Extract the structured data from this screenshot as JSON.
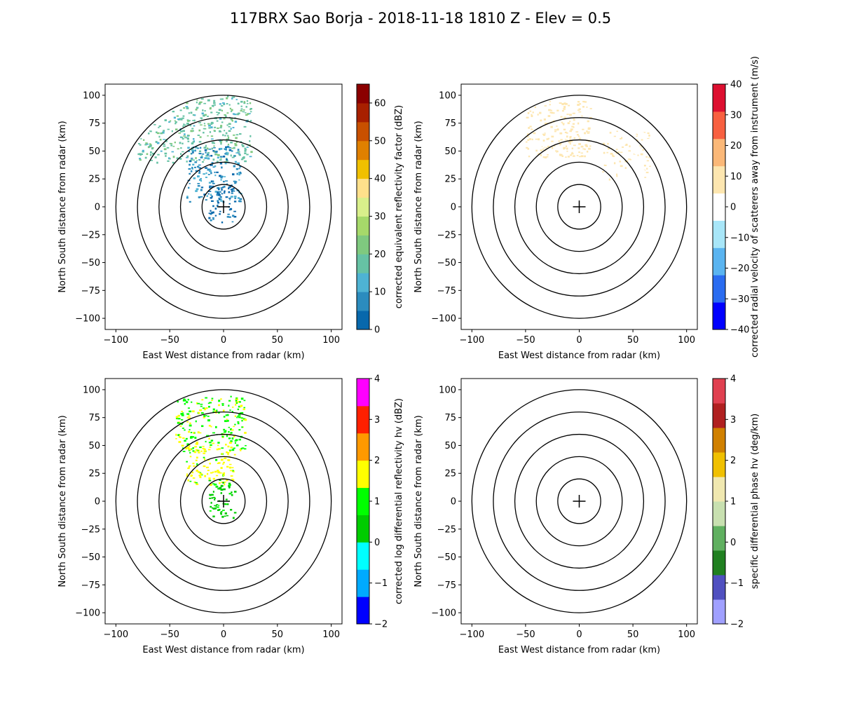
{
  "title": "117BRX Sao Borja - 2018-11-18 1810 Z -  Elev = 0.5",
  "chart_data": [
    {
      "type": "heatmap",
      "xlabel": "East West distance from radar (km)",
      "ylabel": "North South distance from radar (km)",
      "xlim": [
        -110,
        110
      ],
      "ylim": [
        -110,
        110
      ],
      "xticks": [
        -100,
        -50,
        0,
        50,
        100
      ],
      "yticks": [
        -100,
        -75,
        -50,
        -25,
        0,
        25,
        50,
        75,
        100
      ],
      "range_rings_km": [
        20,
        40,
        60,
        80,
        100
      ],
      "colorbar": {
        "label": "corrected equivalent reflectivity factor (dBZ)",
        "min": 0,
        "max": 65,
        "ticks": [
          0,
          10,
          20,
          30,
          40,
          50,
          60
        ],
        "colors": [
          "#0868ac",
          "#2b8cbe",
          "#4eb3d3",
          "#66c2a4",
          "#7fc97f",
          "#a6d96a",
          "#d9ef8b",
          "#fee08b",
          "#f0c000",
          "#e08000",
          "#c85000",
          "#a82000",
          "#8b0000"
        ]
      },
      "echo_regions": [
        {
          "name": "northwest-arc",
          "x_range": [
            -80,
            25
          ],
          "y_range": [
            40,
            100
          ],
          "value": 18
        },
        {
          "name": "central-core",
          "x_range": [
            -35,
            15
          ],
          "y_range": [
            5,
            55
          ],
          "value": 8
        },
        {
          "name": "near-radar",
          "x_range": [
            -15,
            10
          ],
          "y_range": [
            -15,
            20
          ],
          "value": 4
        }
      ]
    },
    {
      "type": "heatmap",
      "xlabel": "East West distance from radar (km)",
      "ylabel": "North South distance from radar (km)",
      "xlim": [
        -110,
        110
      ],
      "ylim": [
        -110,
        110
      ],
      "xticks": [
        -100,
        -50,
        0,
        50,
        100
      ],
      "yticks": [
        -100,
        -75,
        -50,
        -25,
        0,
        25,
        50,
        75,
        100
      ],
      "range_rings_km": [
        20,
        40,
        60,
        80,
        100
      ],
      "colorbar": {
        "label": "corrected radial velocity of scatterers away from instrument (m/s)",
        "min": -40,
        "max": 40,
        "ticks": [
          -40,
          -30,
          -20,
          -10,
          0,
          10,
          20,
          30,
          40
        ],
        "colors": [
          "#0000ff",
          "#2a6cf0",
          "#5ab4f0",
          "#a8e6f8",
          "#ffffff",
          "#fde6b0",
          "#fbb878",
          "#f86040",
          "#dd1030"
        ]
      },
      "echo_regions": [
        {
          "name": "scattered-northwest",
          "x_range": [
            -50,
            10
          ],
          "y_range": [
            45,
            95
          ],
          "value": 8
        },
        {
          "name": "scattered-east",
          "x_range": [
            20,
            65
          ],
          "y_range": [
            25,
            70
          ],
          "value": 4
        }
      ]
    },
    {
      "type": "heatmap",
      "xlabel": "East West distance from radar (km)",
      "ylabel": "North South distance from radar (km)",
      "xlim": [
        -110,
        110
      ],
      "ylim": [
        -110,
        110
      ],
      "xticks": [
        -100,
        -50,
        0,
        50,
        100
      ],
      "yticks": [
        -100,
        -75,
        -50,
        -25,
        0,
        25,
        50,
        75,
        100
      ],
      "range_rings_km": [
        20,
        40,
        60,
        80,
        100
      ],
      "colorbar": {
        "label": "corrected log differential reflectivity hv (dBZ)",
        "min": -2,
        "max": 4,
        "ticks": [
          -2,
          -1,
          0,
          1,
          2,
          3,
          4
        ],
        "colors": [
          "#0000ff",
          "#00aaff",
          "#00ffff",
          "#00cc00",
          "#00ff00",
          "#ffff00",
          "#ff9900",
          "#ff2000",
          "#ff00ff"
        ]
      },
      "echo_regions": [
        {
          "name": "northwest-cluster",
          "x_range": [
            -45,
            20
          ],
          "y_range": [
            45,
            95
          ],
          "value": 1.3
        },
        {
          "name": "central",
          "x_range": [
            -35,
            10
          ],
          "y_range": [
            15,
            50
          ],
          "value": 1.6
        },
        {
          "name": "near-radar",
          "x_range": [
            -15,
            10
          ],
          "y_range": [
            -15,
            20
          ],
          "value": 0.5
        }
      ]
    },
    {
      "type": "heatmap",
      "xlabel": "East West distance from radar (km)",
      "ylabel": "North South distance from radar (km)",
      "xlim": [
        -110,
        110
      ],
      "ylim": [
        -110,
        110
      ],
      "xticks": [
        -100,
        -50,
        0,
        50,
        100
      ],
      "yticks": [
        -100,
        -75,
        -50,
        -25,
        0,
        25,
        50,
        75,
        100
      ],
      "range_rings_km": [
        20,
        40,
        60,
        80,
        100
      ],
      "colorbar": {
        "label": "specific differential phase hv (deg/km)",
        "min": -2,
        "max": 4,
        "ticks": [
          -2,
          -1,
          0,
          1,
          2,
          3,
          4
        ],
        "colors": [
          "#a0a0ff",
          "#5050c0",
          "#208020",
          "#60b060",
          "#c8e0b0",
          "#f0e8b0",
          "#f0c000",
          "#d08000",
          "#b02020",
          "#e04050"
        ]
      },
      "echo_regions": []
    }
  ]
}
